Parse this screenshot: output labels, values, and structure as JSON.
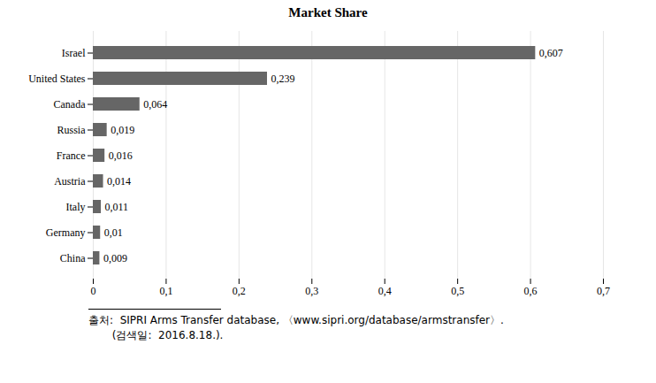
{
  "chart_data": {
    "type": "bar",
    "orientation": "horizontal",
    "title": "Market Share",
    "categories": [
      "Israel",
      "United States",
      "Canada",
      "Russia",
      "France",
      "Austria",
      "Italy",
      "Germany",
      "China"
    ],
    "values": [
      0.607,
      0.239,
      0.064,
      0.019,
      0.016,
      0.014,
      0.011,
      0.01,
      0.009
    ],
    "value_labels": [
      "0,607",
      "0,239",
      "0,064",
      "0,019",
      "0,016",
      "0,014",
      "0,011",
      "0,01",
      "0,009"
    ],
    "data_labels": true,
    "color": "#666666",
    "xlim": [
      0,
      0.7
    ],
    "xticks": [
      0,
      {
        "value": 0.1,
        "label": "0,1"
      },
      {
        "value": 0.2,
        "label": "0,2"
      },
      {
        "value": 0.3,
        "label": "0,3"
      },
      {
        "value": 0.4,
        "label": "0,4"
      },
      {
        "value": 0.5,
        "label": "0,5"
      },
      {
        "value": 0.6,
        "label": "0,6"
      },
      {
        "value": 0.7,
        "label": "0,7"
      }
    ],
    "grid": true,
    "annotations": [
      "출처:  SIPRI Arms Transfer database, 〈www.sipri.org/database/armstransfer〉.",
      "       (검색일:  2016.8.18.)."
    ]
  }
}
